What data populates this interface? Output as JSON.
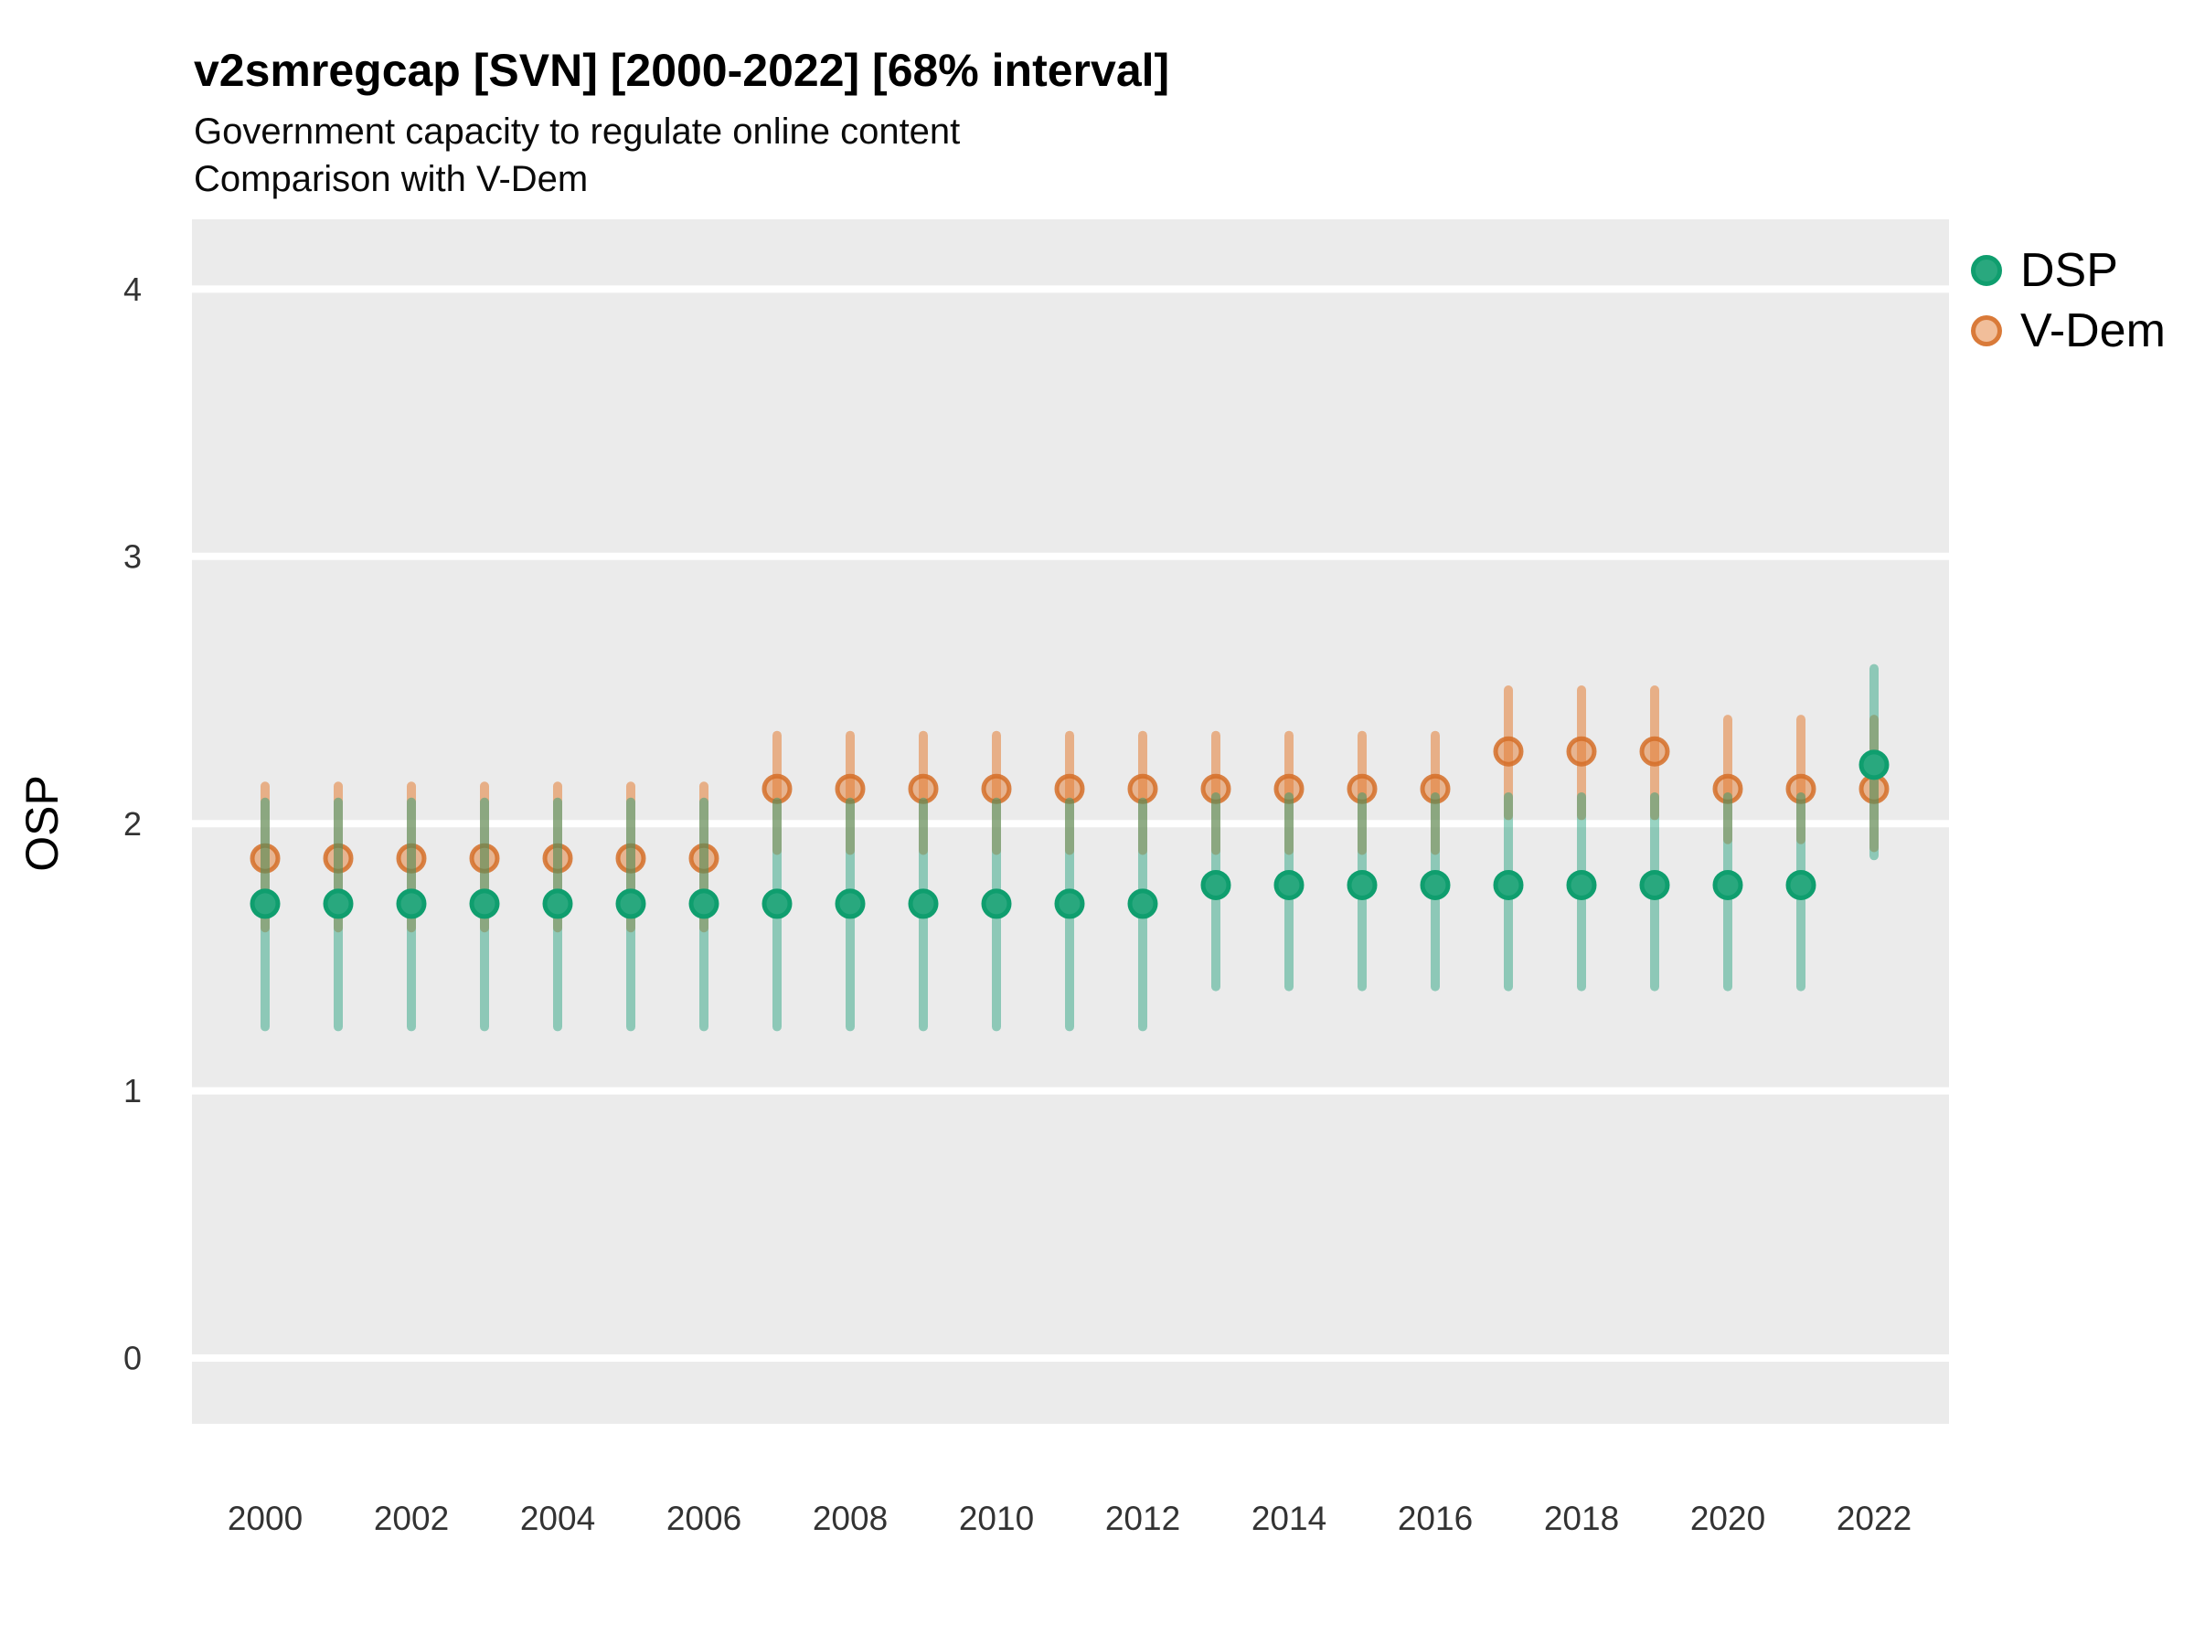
{
  "header": {
    "title": "v2smregcap [SVN] [2000-2022] [68% interval]",
    "subtitle_line1": "Government capacity to regulate online content",
    "subtitle_line2": "Comparison with V-Dem"
  },
  "axes": {
    "y_title": "OSP",
    "y_ticks": [
      0,
      1,
      2,
      3,
      4
    ],
    "x_ticks": [
      2000,
      2002,
      2004,
      2006,
      2008,
      2010,
      2012,
      2014,
      2016,
      2018,
      2020,
      2022
    ]
  },
  "legend": {
    "items": [
      {
        "key": "dsp",
        "label": "DSP"
      },
      {
        "key": "vdem",
        "label": "V-Dem"
      }
    ]
  },
  "colors": {
    "panel_bg": "#ebebeb",
    "grid": "#ffffff",
    "tick_text": "#333333",
    "dsp": {
      "line": "rgba(27,158,119,0.45)",
      "point_fill": "#29a87e",
      "point_stroke": "#0f9e6e"
    },
    "vdem": {
      "line": "rgba(227,126,53,0.55)",
      "point_fill": "rgba(227,126,53,0.5)",
      "point_stroke": "rgba(213,110,40,0.85)"
    }
  },
  "chart_data": {
    "type": "pointrange",
    "title": "v2smregcap [SVN] [2000-2022] [68% interval]",
    "subtitle1": "Government capacity to regulate online content",
    "subtitle2": "Comparison with V-Dem",
    "ylabel": "OSP",
    "xlabel": "",
    "interval": "68%",
    "ylim": [
      -0.26,
      4.25
    ],
    "yticks": [
      0,
      1,
      2,
      3,
      4
    ],
    "xticks": [
      2000,
      2002,
      2004,
      2006,
      2008,
      2010,
      2012,
      2014,
      2016,
      2018,
      2020,
      2022
    ],
    "grid": "major-y-only",
    "legend_position": "right",
    "x": [
      2000,
      2001,
      2002,
      2003,
      2004,
      2005,
      2006,
      2007,
      2008,
      2009,
      2010,
      2011,
      2012,
      2013,
      2014,
      2015,
      2016,
      2017,
      2018,
      2019,
      2020,
      2021,
      2022
    ],
    "series": [
      {
        "name": "V-Dem",
        "key": "vdem",
        "means": [
          1.87,
          1.87,
          1.87,
          1.87,
          1.87,
          1.87,
          1.87,
          2.13,
          2.13,
          2.13,
          2.13,
          2.13,
          2.13,
          2.13,
          2.13,
          2.13,
          2.13,
          2.27,
          2.27,
          2.27,
          2.13,
          2.13,
          2.13
        ],
        "lower": [
          1.61,
          1.61,
          1.61,
          1.61,
          1.61,
          1.61,
          1.61,
          1.9,
          1.9,
          1.9,
          1.9,
          1.9,
          1.9,
          1.9,
          1.9,
          1.9,
          1.9,
          2.03,
          2.03,
          2.03,
          1.94,
          1.94,
          1.91
        ],
        "upper": [
          2.14,
          2.14,
          2.14,
          2.14,
          2.14,
          2.14,
          2.14,
          2.33,
          2.33,
          2.33,
          2.33,
          2.33,
          2.33,
          2.33,
          2.33,
          2.33,
          2.33,
          2.5,
          2.5,
          2.5,
          2.39,
          2.39,
          2.39
        ]
      },
      {
        "name": "DSP",
        "key": "dsp",
        "means": [
          1.7,
          1.7,
          1.7,
          1.7,
          1.7,
          1.7,
          1.7,
          1.7,
          1.7,
          1.7,
          1.7,
          1.7,
          1.7,
          1.77,
          1.77,
          1.77,
          1.77,
          1.77,
          1.77,
          1.77,
          1.77,
          1.77,
          2.22
        ],
        "lower": [
          1.24,
          1.24,
          1.24,
          1.24,
          1.24,
          1.24,
          1.24,
          1.24,
          1.24,
          1.24,
          1.24,
          1.24,
          1.24,
          1.39,
          1.39,
          1.39,
          1.39,
          1.39,
          1.39,
          1.39,
          1.39,
          1.39,
          1.88
        ],
        "upper": [
          2.08,
          2.08,
          2.08,
          2.08,
          2.08,
          2.08,
          2.08,
          2.08,
          2.08,
          2.08,
          2.08,
          2.08,
          2.08,
          2.1,
          2.1,
          2.1,
          2.1,
          2.1,
          2.1,
          2.1,
          2.1,
          2.1,
          2.58
        ]
      }
    ]
  }
}
